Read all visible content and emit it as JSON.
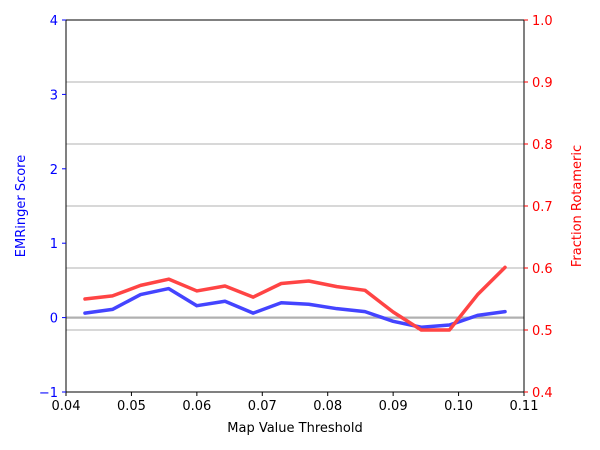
{
  "chart_data": {
    "type": "line",
    "title": "",
    "xlabel": "Map Value Threshold",
    "ylabel_left": "EMRinger Score",
    "ylabel_right": "Fraction Rotameric",
    "xlim": [
      0.04,
      0.11
    ],
    "ylim_left": [
      -1,
      4
    ],
    "ylim_right": [
      0.4,
      1.0
    ],
    "x_ticks": [
      "0.04",
      "0.05",
      "0.06",
      "0.07",
      "0.08",
      "0.09",
      "0.10",
      "0.11"
    ],
    "y_left_ticks": [
      "−1",
      "0",
      "1",
      "2",
      "3",
      "4"
    ],
    "y_right_ticks": [
      "0.4",
      "0.5",
      "0.6",
      "0.7",
      "0.8",
      "0.9",
      "1.0"
    ],
    "x_tick_values": [
      0.04,
      0.05,
      0.06,
      0.07,
      0.08,
      0.09,
      0.1,
      0.11
    ],
    "y_left_tick_values": [
      -1,
      0,
      1,
      2,
      3,
      4
    ],
    "y_right_tick_values": [
      0.4,
      0.5,
      0.6,
      0.7,
      0.8,
      0.9,
      1.0
    ],
    "right_gridlines": [
      0.5,
      0.6,
      0.7,
      0.8,
      0.9
    ],
    "zero_line": 0,
    "series": [
      {
        "axis": "left",
        "color": "#4444ff",
        "x": [
          0.0429,
          0.0471,
          0.0514,
          0.0557,
          0.06,
          0.0643,
          0.0686,
          0.0729,
          0.0771,
          0.0814,
          0.0857,
          0.09,
          0.0943,
          0.0986,
          0.1029,
          0.1071
        ],
        "values": [
          0.06,
          0.11,
          0.31,
          0.39,
          0.16,
          0.22,
          0.06,
          0.2,
          0.18,
          0.12,
          0.08,
          -0.05,
          -0.13,
          -0.1,
          0.03,
          0.08
        ]
      },
      {
        "axis": "right",
        "color": "#ff4444",
        "x": [
          0.0429,
          0.0471,
          0.0514,
          0.0557,
          0.06,
          0.0643,
          0.0686,
          0.0729,
          0.0771,
          0.0814,
          0.0857,
          0.09,
          0.0943,
          0.0986,
          0.1029,
          0.1071
        ],
        "values": [
          0.55,
          0.555,
          0.572,
          0.582,
          0.563,
          0.571,
          0.553,
          0.575,
          0.579,
          0.57,
          0.564,
          0.529,
          0.5,
          0.5,
          0.557,
          0.601
        ]
      }
    ],
    "colors": {
      "left_axis": "#0000ff",
      "right_axis": "#ff0000",
      "grid": "#b0b0b0",
      "zero_line": "#b0b0b0"
    }
  }
}
